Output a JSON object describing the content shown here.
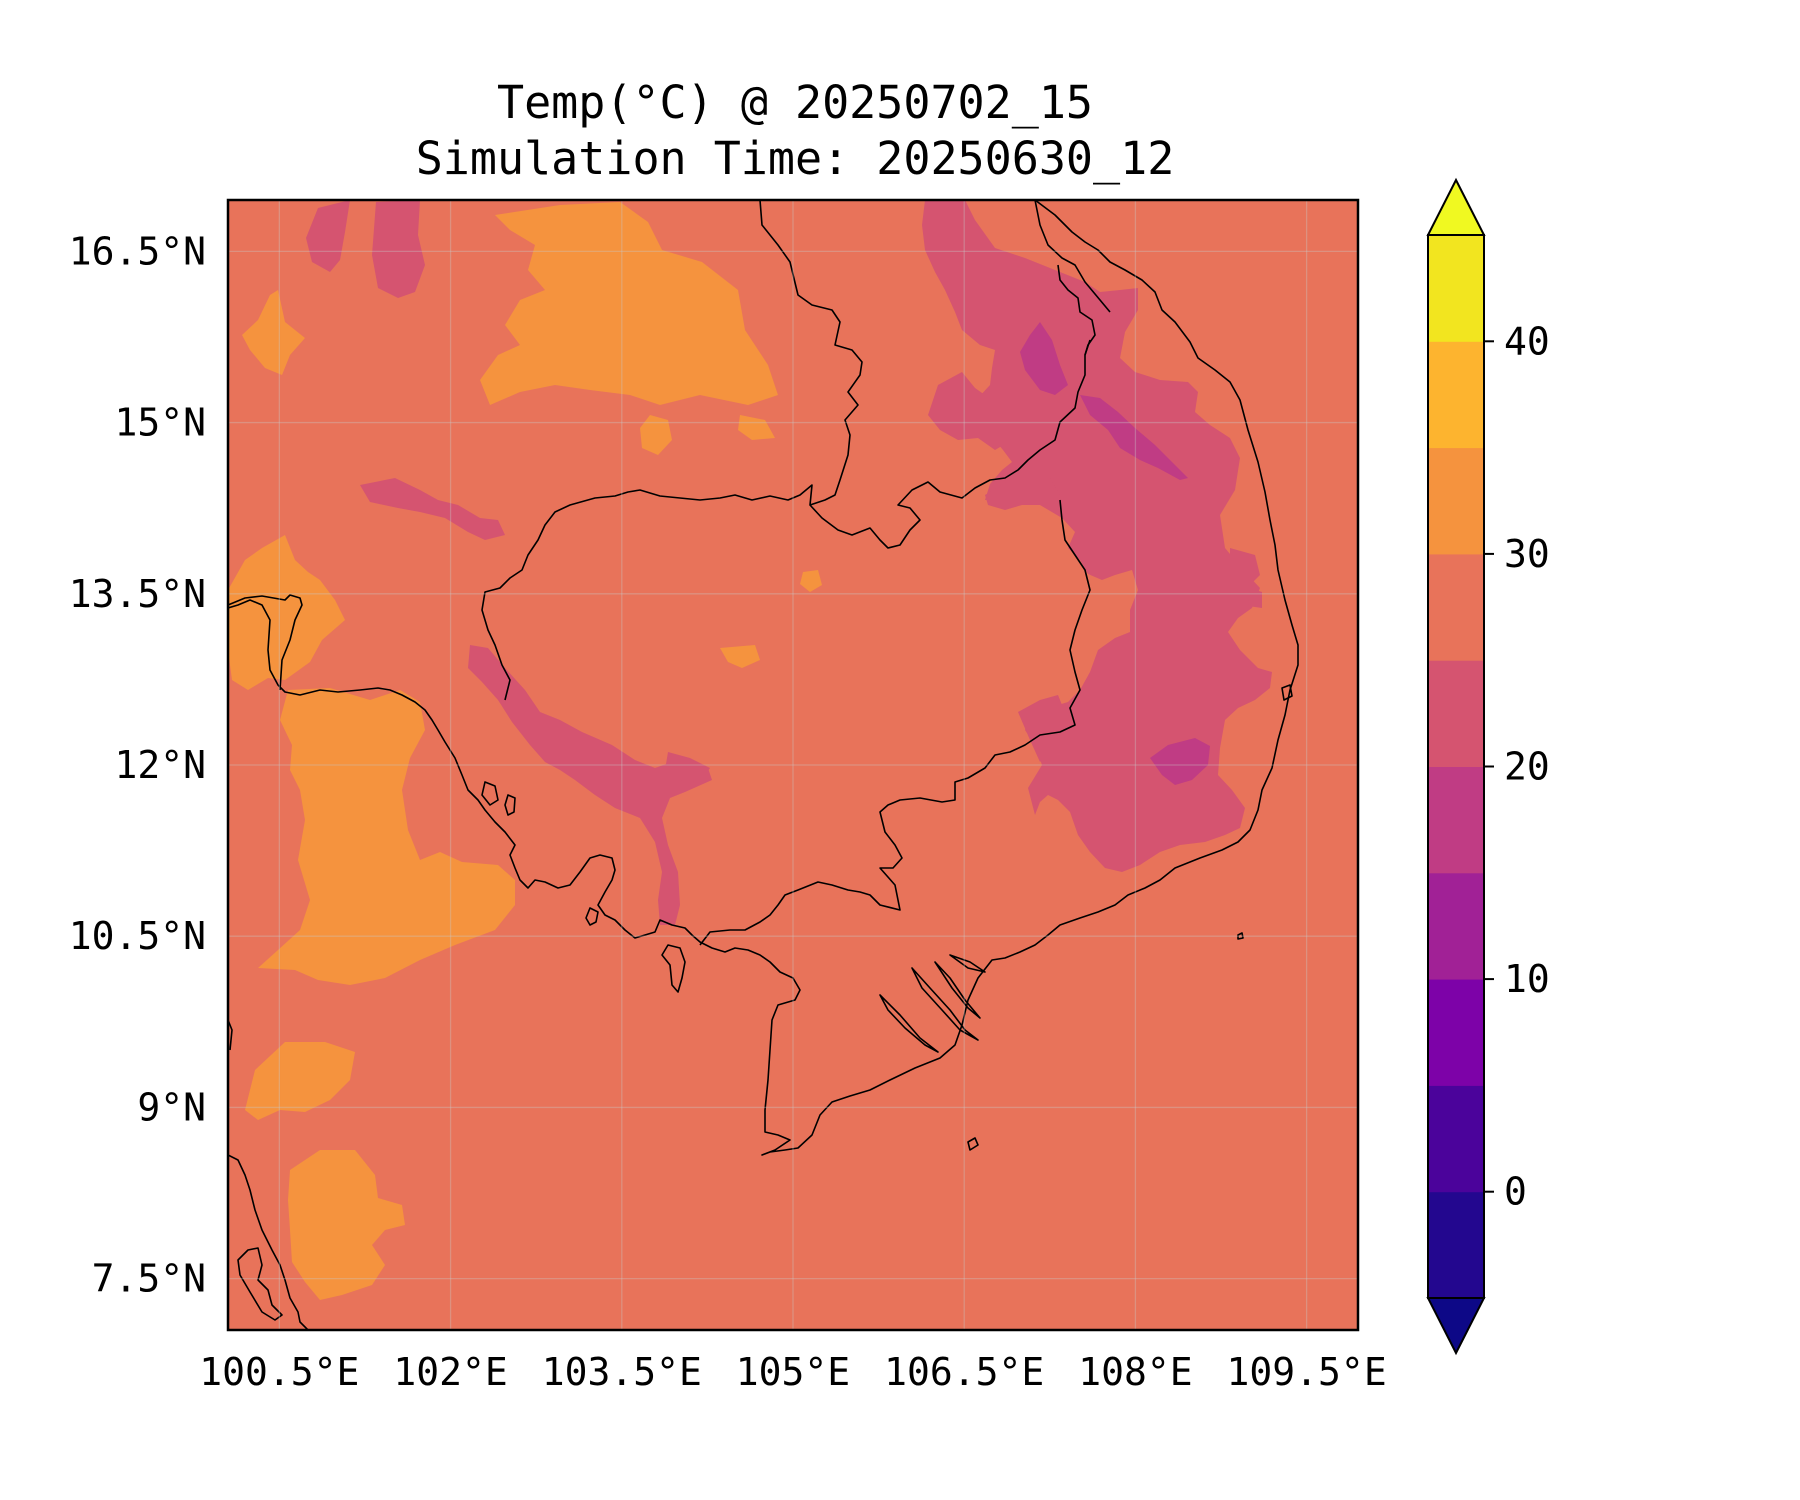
{
  "title": "Temp(°C) @ 20250702_15",
  "subtitle": "Simulation Time: 20250630_12",
  "map": {
    "lon_range": [
      100.05,
      109.95
    ],
    "lat_range": [
      7.05,
      16.95
    ],
    "lon_ticks": [
      100.5,
      102,
      103.5,
      105,
      106.5,
      108,
      109.5
    ],
    "lat_ticks": [
      7.5,
      9,
      10.5,
      12,
      13.5,
      15,
      16.5
    ],
    "lon_tick_labels": [
      "100.5°E",
      "102°E",
      "103.5°E",
      "105°E",
      "106.5°E",
      "108°E",
      "109.5°E"
    ],
    "lat_tick_labels": [
      "7.5°N",
      "9°N",
      "10.5°N",
      "12°N",
      "13.5°N",
      "15°N",
      "16.5°N"
    ],
    "grid": true,
    "background_level": "25-30",
    "background_color": "#e8735a"
  },
  "colorbar": {
    "levels": [
      -5,
      0,
      5,
      10,
      15,
      20,
      25,
      30,
      35,
      40,
      45
    ],
    "colors": [
      "#23078f",
      "#4b039b",
      "#7d02a8",
      "#a12196",
      "#c03c84",
      "#d55470",
      "#e8735a",
      "#f5933e",
      "#fdb42f",
      "#f2e51f"
    ],
    "under_color": "#0d0887",
    "over_color": "#f0f921",
    "extend": "both",
    "tick_values": [
      0,
      10,
      20,
      30,
      40
    ],
    "tick_labels": [
      "0",
      "10",
      "20",
      "30",
      "40"
    ]
  }
}
